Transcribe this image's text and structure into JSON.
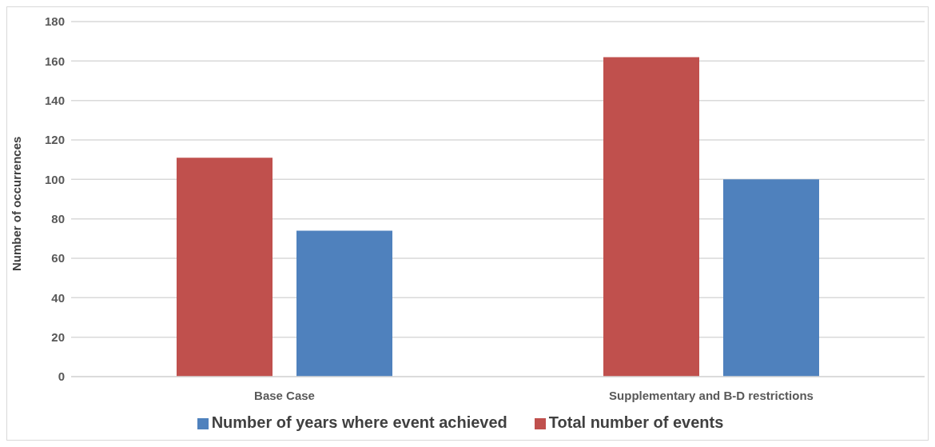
{
  "chart_data": {
    "type": "bar",
    "ylabel": "Number of occurrences",
    "categories": [
      "Base Case",
      "Supplementary and B-D restrictions"
    ],
    "series": [
      {
        "name": "Total number of events",
        "color": "#c0504d",
        "values": [
          111,
          162
        ]
      },
      {
        "name": "Number of years where event achieved",
        "color": "#4f81bd",
        "values": [
          74,
          100
        ]
      }
    ],
    "ylim": [
      0,
      180
    ],
    "yticks": [
      0,
      20,
      40,
      60,
      80,
      100,
      120,
      140,
      160,
      180
    ],
    "grid": "y",
    "legend": "bottom"
  }
}
